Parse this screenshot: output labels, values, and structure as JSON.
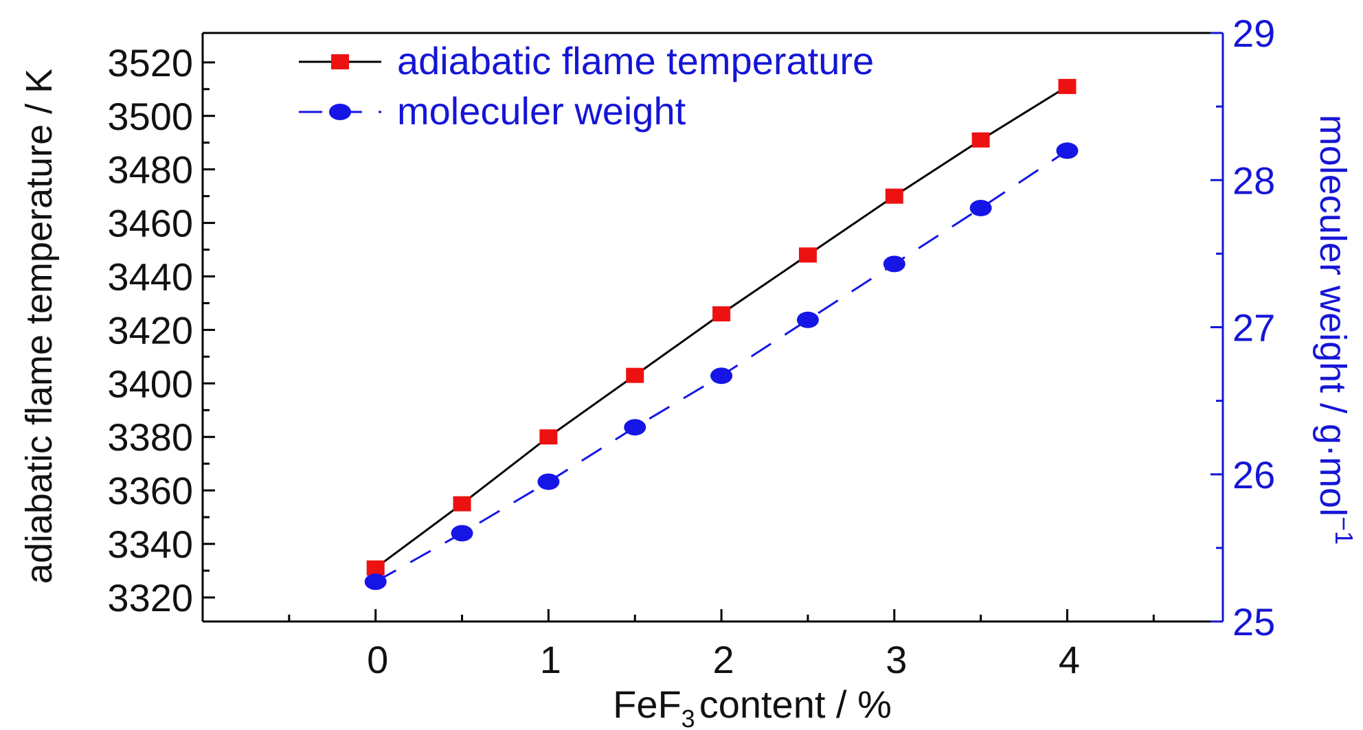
{
  "chart_data": {
    "type": "line",
    "x": [
      0,
      0.5,
      1,
      1.5,
      2,
      2.5,
      3,
      3.5,
      4
    ],
    "xlim": [
      -1,
      4.9
    ],
    "xticks": [
      0,
      1,
      2,
      3,
      4
    ],
    "xlabel": {
      "main": "FeF",
      "sub": "3",
      "rest": "content / %"
    },
    "yleft": {
      "label": "adiabatic flame temperature / K",
      "ticks": [
        3320,
        3340,
        3360,
        3380,
        3400,
        3420,
        3440,
        3460,
        3480,
        3500,
        3520
      ],
      "ylim": [
        3311,
        3531
      ]
    },
    "yright": {
      "label_main": "moleculer weight / g·mol",
      "label_sup": "−1",
      "ticks": [
        25,
        26,
        27,
        28,
        29
      ],
      "ylim": [
        25,
        29
      ]
    },
    "series": [
      {
        "name": "adiabatic flame temperature",
        "axis": "left",
        "marker": "square",
        "line": "solid",
        "color": "#ee1111",
        "line_color": "#000000",
        "values": [
          3331,
          3355,
          3380,
          3403,
          3426,
          3448,
          3470,
          3491,
          3511
        ]
      },
      {
        "name": "moleculer weight",
        "axis": "right",
        "marker": "circle",
        "line": "dashed",
        "color": "#1515e6",
        "line_color": "#1515e6",
        "values": [
          25.27,
          25.6,
          25.95,
          26.32,
          26.67,
          27.05,
          27.43,
          27.81,
          28.2
        ]
      }
    ],
    "legend_position": "top-left",
    "grid": false
  }
}
